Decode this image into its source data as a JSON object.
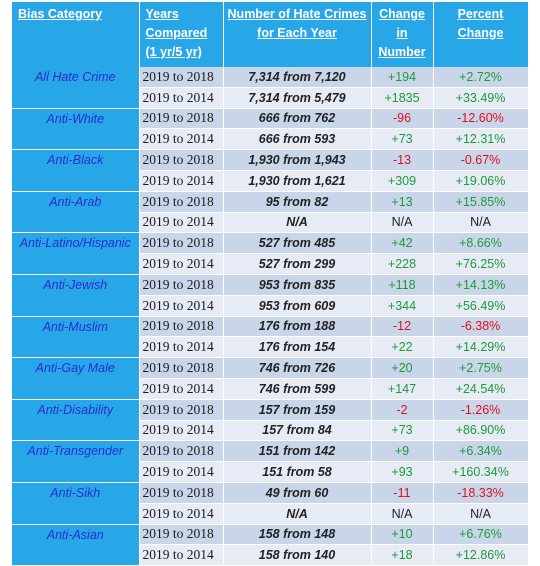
{
  "headers": {
    "category": "Bias Category",
    "years": [
      "Years",
      "Compared",
      "(1 yr/5 yr)"
    ],
    "number": [
      "Number of Hate Crimes",
      "for Each Year"
    ],
    "change": [
      "Change in",
      "Number"
    ],
    "percent": "Percent Change"
  },
  "rows": [
    {
      "category": "All Hate Crime",
      "entries": [
        {
          "years": "2019 to 2018",
          "crimes": "7,314 from 7,120",
          "change": "+194",
          "percent": "+2.72%"
        },
        {
          "years": "2019 to 2014",
          "crimes": "7,314 from 5,479",
          "change": "+1835",
          "percent": "+33.49%"
        }
      ]
    },
    {
      "category": "Anti-White",
      "entries": [
        {
          "years": "2019 to 2018",
          "crimes": "666 from 762",
          "change": "-96",
          "percent": "-12.60%"
        },
        {
          "years": "2019 to 2014",
          "crimes": "666 from 593",
          "change": "+73",
          "percent": "+12.31%"
        }
      ]
    },
    {
      "category": "Anti-Black",
      "entries": [
        {
          "years": "2019 to 2018",
          "crimes": "1,930 from 1,943",
          "change": "-13",
          "percent": "-0.67%"
        },
        {
          "years": "2019 to 2014",
          "crimes": "1,930 from 1,621",
          "change": "+309",
          "percent": "+19.06%"
        }
      ]
    },
    {
      "category": "Anti-Arab",
      "entries": [
        {
          "years": "2019 to 2018",
          "crimes": "95 from 82",
          "change": "+13",
          "percent": "+15.85%"
        },
        {
          "years": "2019 to 2014",
          "crimes": "N/A",
          "change": "N/A",
          "percent": "N/A"
        }
      ]
    },
    {
      "category": "Anti-Latino/Hispanic",
      "entries": [
        {
          "years": "2019 to 2018",
          "crimes": "527 from 485",
          "change": "+42",
          "percent": "+8.66%"
        },
        {
          "years": "2019 to 2014",
          "crimes": "527 from 299",
          "change": "+228",
          "percent": "+76.25%"
        }
      ]
    },
    {
      "category": "Anti-Jewish",
      "entries": [
        {
          "years": "2019 to 2018",
          "crimes": "953 from 835",
          "change": "+118",
          "percent": "+14.13%"
        },
        {
          "years": "2019 to 2014",
          "crimes": "953 from 609",
          "change": "+344",
          "percent": "+56.49%"
        }
      ]
    },
    {
      "category": "Anti-Muslim",
      "entries": [
        {
          "years": "2019 to 2018",
          "crimes": "176 from 188",
          "change": "-12",
          "percent": "-6.38%"
        },
        {
          "years": "2019 to 2014",
          "crimes": "176 from 154",
          "change": "+22",
          "percent": "+14.29%"
        }
      ]
    },
    {
      "category": "Anti-Gay Male",
      "entries": [
        {
          "years": "2019 to 2018",
          "crimes": "746 from 726",
          "change": "+20",
          "percent": "+2.75%"
        },
        {
          "years": "2019 to 2014",
          "crimes": "746 from 599",
          "change": "+147",
          "percent": "+24.54%"
        }
      ]
    },
    {
      "category": "Anti-Disability",
      "entries": [
        {
          "years": "2019 to 2018",
          "crimes": "157 from 159",
          "change": "-2",
          "percent": "-1.26%"
        },
        {
          "years": "2019 to 2014",
          "crimes": "157 from 84",
          "change": "+73",
          "percent": "+86.90%"
        }
      ]
    },
    {
      "category": "Anti-Transgender",
      "entries": [
        {
          "years": "2019 to 2018",
          "crimes": "151 from 142",
          "change": "+9",
          "percent": "+6.34%"
        },
        {
          "years": "2019 to 2014",
          "crimes": "151 from 58",
          "change": "+93",
          "percent": "+160.34%"
        }
      ]
    },
    {
      "category": "Anti-Sikh",
      "entries": [
        {
          "years": "2019 to 2018",
          "crimes": "49 from 60",
          "change": "-11",
          "percent": "-18.33%"
        },
        {
          "years": "2019 to 2014",
          "crimes": "N/A",
          "change": "N/A",
          "percent": "N/A"
        }
      ]
    },
    {
      "category": "Anti-Asian",
      "entries": [
        {
          "years": "2019 to 2018",
          "crimes": "158 from 148",
          "change": "+10",
          "percent": "+6.76%"
        },
        {
          "years": "2019 to 2014",
          "crimes": "158 from 140",
          "change": "+18",
          "percent": "+12.86%"
        }
      ]
    }
  ],
  "colors": {
    "header_bg": "#27a7e8",
    "category_text": "#2b2bd1",
    "row_shade_a": "#c9d6ea",
    "row_shade_b": "#e6ebf5",
    "positive": "#1e9a3a",
    "negative": "#e0101a"
  }
}
